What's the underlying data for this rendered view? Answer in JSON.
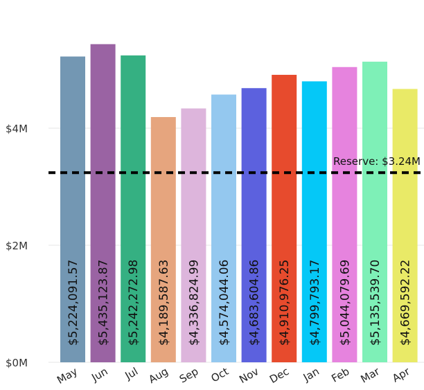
{
  "chart_data": {
    "type": "bar",
    "categories": [
      "May",
      "Jun",
      "Jul",
      "Aug",
      "Sep",
      "Oct",
      "Nov",
      "Dec",
      "Jan",
      "Feb",
      "Mar",
      "Apr"
    ],
    "values": [
      5224091.57,
      5435123.87,
      5242272.98,
      4189587.63,
      4336824.99,
      4574044.06,
      4683604.86,
      4910976.25,
      4799793.17,
      5044079.69,
      5135539.7,
      4669592.22
    ],
    "data_labels": [
      "$5,224,091.57",
      "$5,435,123.87",
      "$5,242,272.98",
      "$4,189,587.63",
      "$4,336,824.99",
      "$4,574,044.06",
      "$4,683,604.86",
      "$4,910,976.25",
      "$4,799,793.17",
      "$5,044,079.69",
      "$5,135,539.70",
      "$4,669,592.22"
    ],
    "colors": [
      "#7397b3",
      "#9a63a3",
      "#35b082",
      "#e6a57e",
      "#ddb5dc",
      "#94c8ef",
      "#5c61de",
      "#e74b2d",
      "#05c8f7",
      "#e683de",
      "#7ef0b7",
      "#e9ea67"
    ],
    "ylim": [
      0,
      6000000
    ],
    "y_ticks": [
      {
        "value": 0,
        "label": "$0M"
      },
      {
        "value": 2000000,
        "label": "$2M"
      },
      {
        "value": 4000000,
        "label": "$4M"
      }
    ],
    "reference_line": {
      "value": 3240000,
      "label": "Reserve: $3.24M",
      "style": "dashed",
      "color": "#000000"
    },
    "grid": true,
    "title": "",
    "xlabel": "",
    "ylabel": ""
  }
}
